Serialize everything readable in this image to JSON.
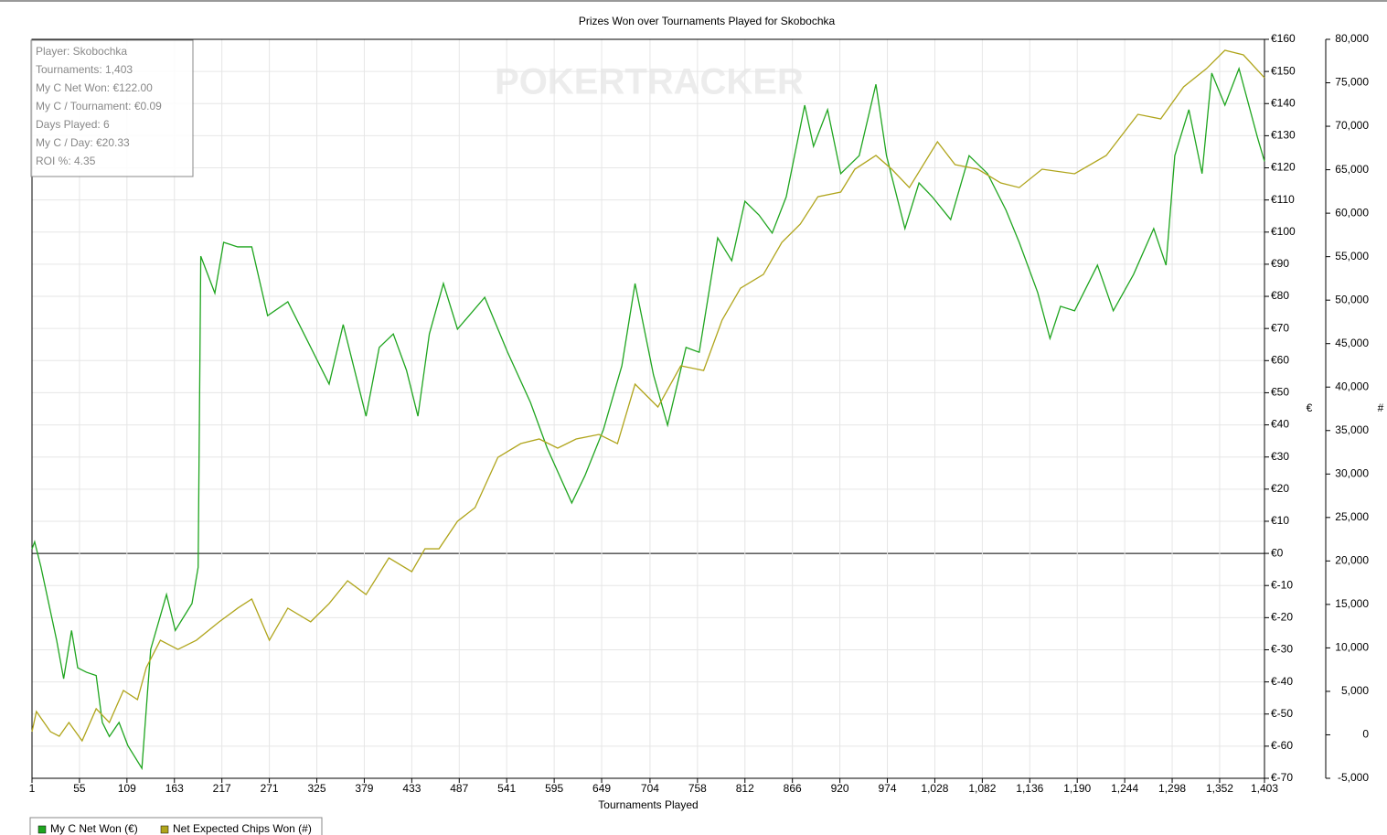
{
  "chart_data": {
    "type": "line",
    "title": "Prizes Won over Tournaments Played for Skobochka",
    "watermark": "POKERTRACKER",
    "xlabel": "Tournaments Played",
    "ylabel": "€",
    "y2label": "#",
    "grid": true,
    "info_box": [
      "Player: Skobochka",
      "Tournaments: 1,403",
      "My C Net Won: €122.00",
      "My C / Tournament: €0.09",
      "Days Played: 6",
      "My C / Day: €20.33",
      "ROI %: 4.35"
    ],
    "xlim": [
      1,
      1403
    ],
    "xticks": [
      1,
      55,
      109,
      163,
      217,
      271,
      325,
      379,
      433,
      487,
      541,
      595,
      649,
      704,
      758,
      812,
      866,
      920,
      974,
      {
        "value": 1028,
        "label": "1,028"
      },
      {
        "value": 1082,
        "label": "1,082"
      },
      {
        "value": 1136,
        "label": "1,136"
      },
      {
        "value": 1190,
        "label": "1,190"
      },
      {
        "value": 1244,
        "label": "1,244"
      },
      {
        "value": 1298,
        "label": "1,298"
      },
      {
        "value": 1352,
        "label": "1,352"
      },
      {
        "value": 1403,
        "label": "1,403"
      }
    ],
    "ylim": [
      -70,
      160
    ],
    "yticks": [
      {
        "value": 160,
        "label": "€160"
      },
      {
        "value": 150,
        "label": "€150"
      },
      {
        "value": 140,
        "label": "€140"
      },
      {
        "value": 130,
        "label": "€130"
      },
      {
        "value": 120,
        "label": "€120"
      },
      {
        "value": 110,
        "label": "€110"
      },
      {
        "value": 100,
        "label": "€100"
      },
      {
        "value": 90,
        "label": "€90"
      },
      {
        "value": 80,
        "label": "€80"
      },
      {
        "value": 70,
        "label": "€70"
      },
      {
        "value": 60,
        "label": "€60"
      },
      {
        "value": 50,
        "label": "€50"
      },
      {
        "value": 40,
        "label": "€40"
      },
      {
        "value": 30,
        "label": "€30"
      },
      {
        "value": 20,
        "label": "€20"
      },
      {
        "value": 10,
        "label": "€10"
      },
      {
        "value": 0,
        "label": "€0"
      },
      {
        "value": -10,
        "label": "€-10"
      },
      {
        "value": -20,
        "label": "€-20"
      },
      {
        "value": -30,
        "label": "€-30"
      },
      {
        "value": -40,
        "label": "€-40"
      },
      {
        "value": -50,
        "label": "€-50"
      },
      {
        "value": -60,
        "label": "€-60"
      },
      {
        "value": -70,
        "label": "€-70"
      }
    ],
    "y2lim": [
      -5000,
      80000
    ],
    "y2ticks": [
      {
        "value": 80000,
        "label": "80,000"
      },
      {
        "value": 75000,
        "label": "75,000"
      },
      {
        "value": 70000,
        "label": "70,000"
      },
      {
        "value": 65000,
        "label": "65,000"
      },
      {
        "value": 60000,
        "label": "60,000"
      },
      {
        "value": 55000,
        "label": "55,000"
      },
      {
        "value": 50000,
        "label": "50,000"
      },
      {
        "value": 45000,
        "label": "45,000"
      },
      {
        "value": 40000,
        "label": "40,000"
      },
      {
        "value": 35000,
        "label": "35,000"
      },
      {
        "value": 30000,
        "label": "30,000"
      },
      {
        "value": 25000,
        "label": "25,000"
      },
      {
        "value": 20000,
        "label": "20,000"
      },
      {
        "value": 15000,
        "label": "15,000"
      },
      {
        "value": 10000,
        "label": "10,000"
      },
      {
        "value": 5000,
        "label": "5,000"
      },
      0,
      {
        "value": -5000,
        "label": "-5,000"
      }
    ],
    "series": [
      {
        "name": "My C Net Won (€)",
        "color": "#1fa51f",
        "x": [
          1,
          4,
          11,
          29,
          37,
          46,
          53,
          63,
          74,
          81,
          89,
          100,
          110,
          126,
          136,
          154,
          164,
          183,
          190,
          193,
          209,
          219,
          235,
          251,
          269,
          292,
          313,
          339,
          355,
          381,
          396,
          412,
          427,
          440,
          453,
          469,
          485,
          516,
          542,
          568,
          587,
          615,
          630,
          651,
          672,
          687,
          708,
          724,
          745,
          760,
          781,
          797,
          812,
          828,
          843,
          859,
          880,
          890,
          906,
          921,
          942,
          961,
          973,
          994,
          1010,
          1025,
          1046,
          1067,
          1088,
          1109,
          1124,
          1145,
          1159,
          1171,
          1187,
          1213,
          1231,
          1254,
          1277,
          1291,
          1301,
          1317,
          1332,
          1343,
          1358,
          1374,
          1395,
          1403
        ],
        "values": [
          1.4,
          3.6,
          -4,
          -27,
          -39,
          -24,
          -35.6,
          -37,
          -38,
          -52.6,
          -57,
          -52.6,
          -59.8,
          -66.9,
          -29.9,
          -12.8,
          -24,
          -15.6,
          -4.3,
          92.5,
          81,
          96.8,
          95.4,
          95.4,
          74,
          78.3,
          66.9,
          52.7,
          71.2,
          42.7,
          64.1,
          68.3,
          57,
          42.7,
          68.3,
          84,
          69.8,
          79.7,
          62.6,
          47,
          32.8,
          15.7,
          24.2,
          38.5,
          58.4,
          84,
          55.5,
          39.9,
          64.1,
          62.6,
          98.2,
          91.1,
          109.6,
          105.3,
          99.7,
          111,
          139.5,
          126.7,
          138.1,
          118.2,
          123.8,
          146,
          123.8,
          101.1,
          115.3,
          111,
          103.9,
          123.8,
          118.2,
          106.8,
          96.8,
          81.2,
          66.9,
          76.9,
          75.5,
          89.7,
          75.5,
          86.8,
          101.1,
          89.7,
          123.8,
          138.1,
          118.2,
          149.5,
          139.5,
          150.9,
          129.5,
          122
        ]
      },
      {
        "name": "Net Expected Chips Won (#)",
        "color": "#b0a51c",
        "axis": "y2",
        "x": [
          1,
          6,
          22,
          32,
          43,
          58,
          74,
          89,
          105,
          121,
          131,
          147,
          167,
          188,
          214,
          235,
          251,
          271,
          292,
          318,
          339,
          360,
          381,
          407,
          433,
          448,
          464,
          485,
          505,
          531,
          557,
          578,
          599,
          620,
          646,
          667,
          687,
          713,
          739,
          765,
          786,
          807,
          833,
          854,
          875,
          895,
          921,
          937,
          961,
          979,
          999,
          1031,
          1051,
          1077,
          1103,
          1124,
          1150,
          1187,
          1223,
          1259,
          1285,
          1311,
          1337,
          1358,
          1379,
          1403
        ],
        "values": [
          360,
          2680,
          360,
          -160,
          1420,
          -690,
          3000,
          1420,
          5100,
          4050,
          7730,
          10880,
          9830,
          10880,
          13000,
          14570,
          15620,
          10880,
          14570,
          13000,
          15100,
          17720,
          16140,
          20350,
          18770,
          21400,
          21400,
          24560,
          26140,
          31920,
          33500,
          34030,
          32980,
          34030,
          34550,
          33500,
          40340,
          37710,
          42440,
          41910,
          47700,
          51380,
          52960,
          56640,
          58750,
          61900,
          62430,
          65060,
          66640,
          65060,
          62950,
          68220,
          65590,
          65060,
          63480,
          62950,
          65060,
          64540,
          66640,
          71370,
          70850,
          74530,
          76630,
          78740,
          78210,
          75580
        ]
      }
    ]
  }
}
